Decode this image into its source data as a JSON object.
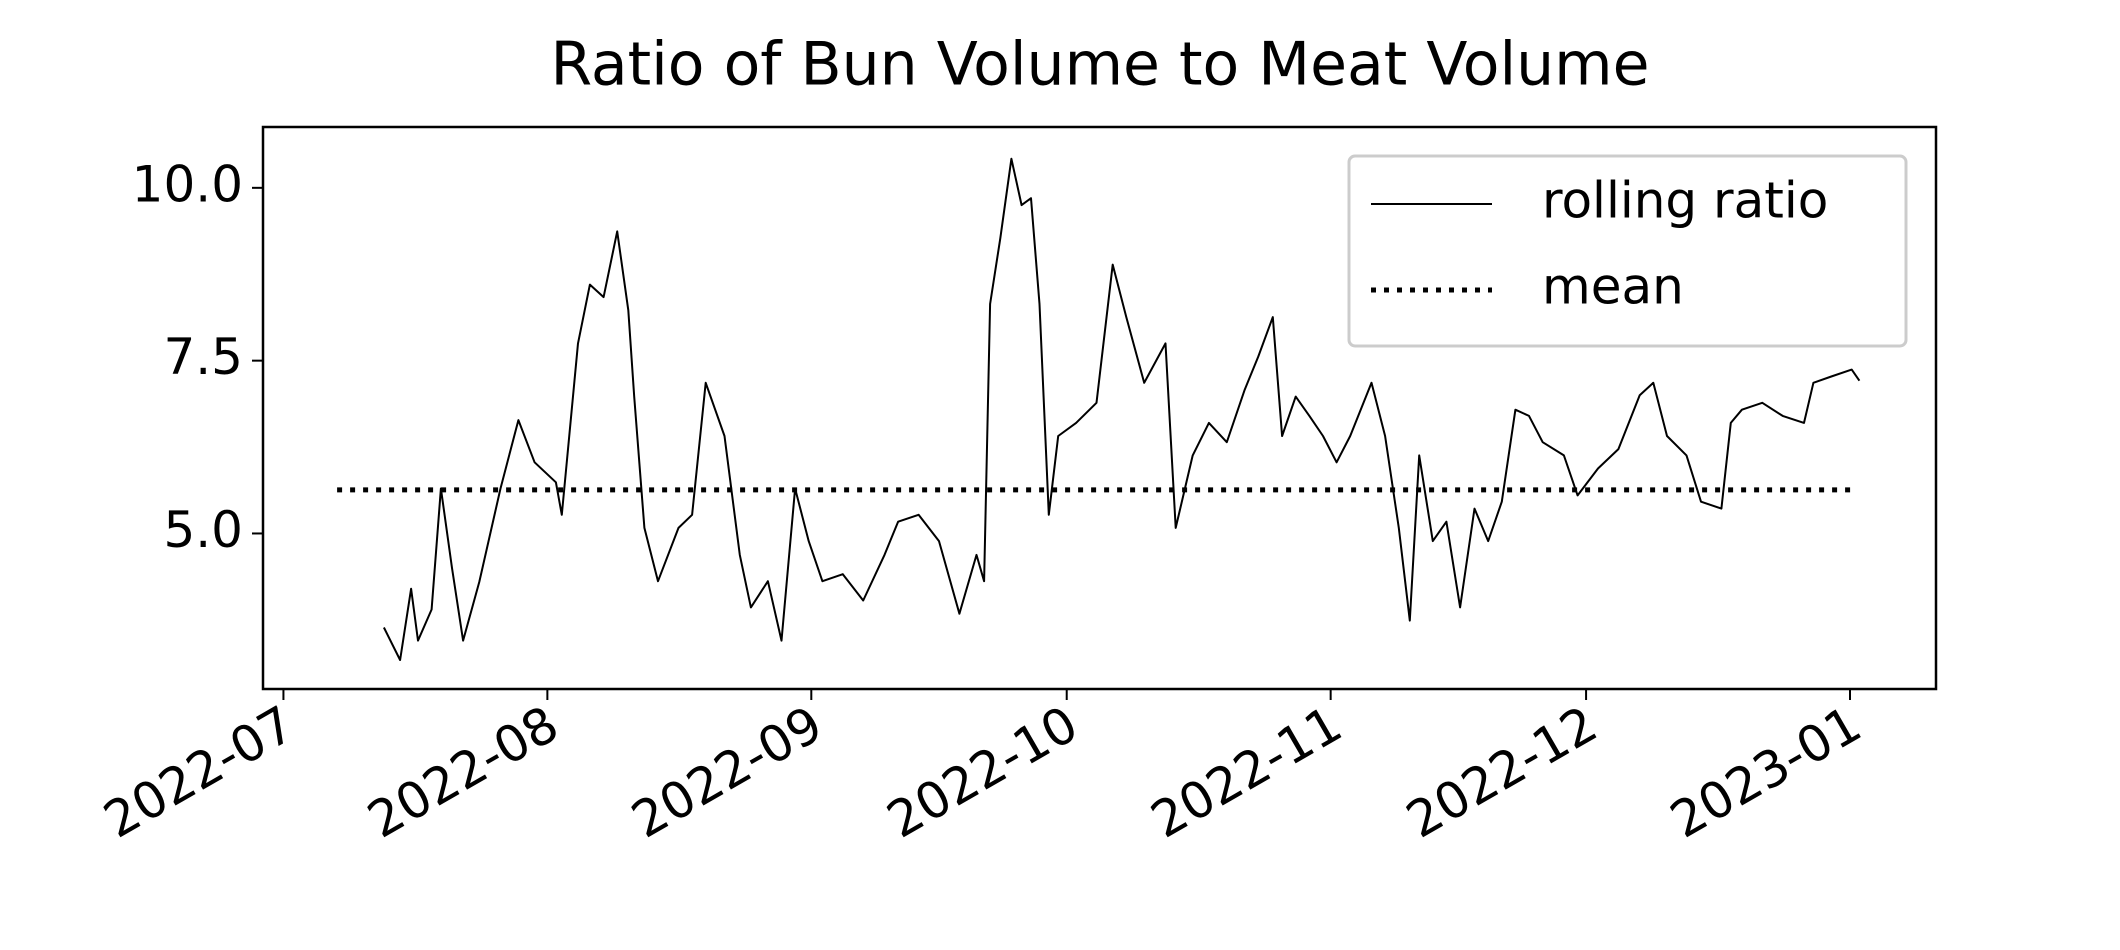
{
  "chart_data": {
    "type": "line",
    "title": "Ratio of Bun Volume to Meat Volume",
    "xlim": [
      -2.4,
      194.1
    ],
    "xticks": [
      {
        "value": 0,
        "label": "2022-07"
      },
      {
        "value": 31,
        "label": "2022-08"
      },
      {
        "value": 62,
        "label": "2022-09"
      },
      {
        "value": 92,
        "label": "2022-10"
      },
      {
        "value": 123,
        "label": "2022-11"
      },
      {
        "value": 153,
        "label": "2022-12"
      },
      {
        "value": 184,
        "label": "2023-01"
      }
    ],
    "ylim": [
      2.75,
      10.88
    ],
    "yticks": [
      {
        "value": 5,
        "label": "5.0"
      },
      {
        "value": 7.5,
        "label": "7.5"
      },
      {
        "value": 10,
        "label": "10.0"
      }
    ],
    "grid": false,
    "legend": "upper right",
    "series": [
      {
        "name": "rolling ratio",
        "color": "#000000",
        "style": "solid",
        "x": [
          11.8,
          13.7,
          15.0,
          15.8,
          17.4,
          18.5,
          19.8,
          21.1,
          23.0,
          25.5,
          27.6,
          29.5,
          32.0,
          32.7,
          34.6,
          36.0,
          37.6,
          39.2,
          40.5,
          41.2,
          42.4,
          44.0,
          46.4,
          48.0,
          49.6,
          51.8,
          53.6,
          54.9,
          56.9,
          58.5,
          60.1,
          61.7,
          63.3,
          65.7,
          68.1,
          70.6,
          72.2,
          74.6,
          77.0,
          79.4,
          81.4,
          82.3,
          83.0,
          84.2,
          85.5,
          86.7,
          87.8,
          88.8,
          89.9,
          91.0,
          93.1,
          95.5,
          97.4,
          99.0,
          101.1,
          103.6,
          104.8,
          106.8,
          108.7,
          110.8,
          112.9,
          114.5,
          116.2,
          117.3,
          118.9,
          120.5,
          122.1,
          123.7,
          125.3,
          127.8,
          129.4,
          131.0,
          132.3,
          133.4,
          135.0,
          136.6,
          138.2,
          139.9,
          141.5,
          143.1,
          144.7,
          146.3,
          147.9,
          150.4,
          152.0,
          154.4,
          156.8,
          159.3,
          160.9,
          162.5,
          164.8,
          166.5,
          168.9,
          170.0,
          171.3,
          173.7,
          176.1,
          178.6,
          179.7,
          181.8,
          184.2,
          185.1
        ],
        "values": [
          3.64,
          3.17,
          4.2,
          3.45,
          3.9,
          5.65,
          4.5,
          3.45,
          4.3,
          5.65,
          6.64,
          6.03,
          5.74,
          5.27,
          7.75,
          8.6,
          8.42,
          9.37,
          8.23,
          6.98,
          5.08,
          4.31,
          5.08,
          5.27,
          7.18,
          6.41,
          4.69,
          3.93,
          4.31,
          3.45,
          5.65,
          4.89,
          4.31,
          4.41,
          4.03,
          4.69,
          5.17,
          5.27,
          4.89,
          3.84,
          4.69,
          4.31,
          8.32,
          9.27,
          10.42,
          9.75,
          9.85,
          8.32,
          5.27,
          6.41,
          6.6,
          6.89,
          8.89,
          8.13,
          7.18,
          7.75,
          5.08,
          6.13,
          6.6,
          6.32,
          7.08,
          7.56,
          8.13,
          6.41,
          6.98,
          6.7,
          6.41,
          6.03,
          6.41,
          7.18,
          6.41,
          5.08,
          3.74,
          6.13,
          4.89,
          5.17,
          3.93,
          5.36,
          4.89,
          5.46,
          6.79,
          6.7,
          6.32,
          6.13,
          5.55,
          5.94,
          6.22,
          7.0,
          7.18,
          6.41,
          6.13,
          5.46,
          5.36,
          6.6,
          6.79,
          6.89,
          6.7,
          6.6,
          7.18,
          7.27,
          7.37,
          7.21
        ]
      },
      {
        "name": "mean",
        "color": "#000000",
        "style": "dotted",
        "x": [
          6.3,
          184.2
        ],
        "values": [
          5.63,
          5.63
        ]
      }
    ]
  }
}
